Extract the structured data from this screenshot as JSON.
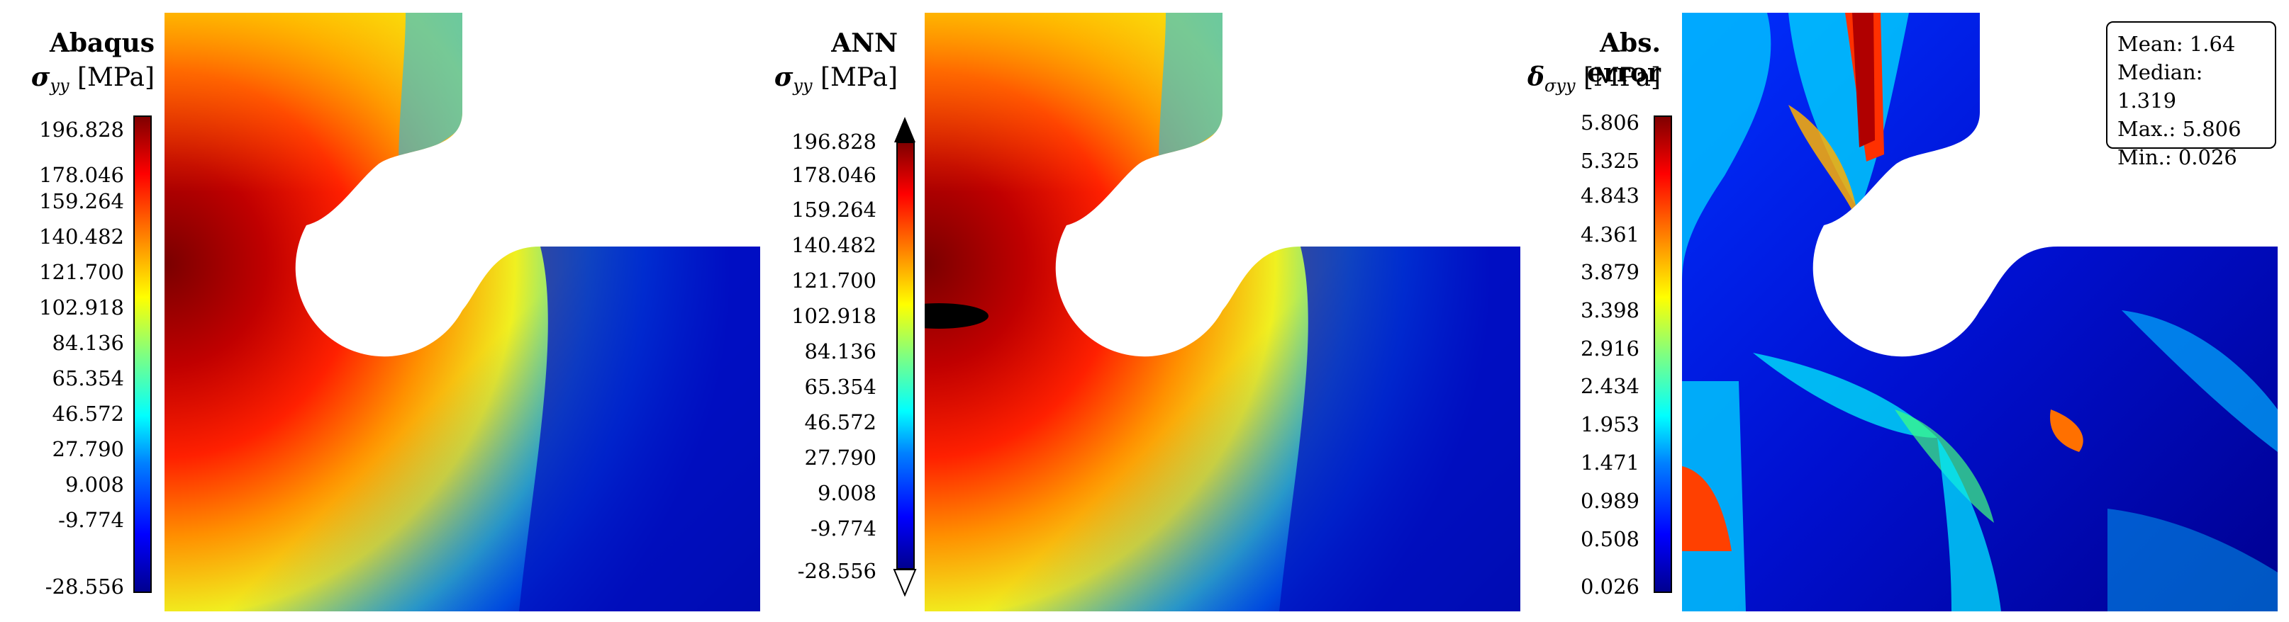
{
  "panels": [
    {
      "title": "Abaqus",
      "symbol": "σ",
      "subscript": "yy",
      "unit": "[MPa]",
      "ticks": [
        "196.828",
        "178.046",
        "159.264",
        "140.482",
        "121.700",
        "102.918",
        "84.136",
        "65.354",
        "46.572",
        "27.790",
        "9.008",
        "-9.774",
        "-28.556"
      ]
    },
    {
      "title": "ANN",
      "symbol": "σ",
      "subscript": "yy",
      "unit": "[MPa]",
      "ticks": [
        "196.828",
        "178.046",
        "159.264",
        "140.482",
        "121.700",
        "102.918",
        "84.136",
        "65.354",
        "46.572",
        "27.790",
        "9.008",
        "-9.774",
        "-28.556"
      ]
    },
    {
      "title": "Abs. error",
      "symbol": "δ",
      "subscript": "σyy",
      "unit": "[MPa]",
      "ticks": [
        "5.806",
        "5.325",
        "4.843",
        "4.361",
        "3.879",
        "3.398",
        "2.916",
        "2.434",
        "1.953",
        "1.471",
        "0.989",
        "0.508",
        "0.026"
      ]
    }
  ],
  "stats": {
    "mean": "Mean: 1.64",
    "median": "Median: 1.319",
    "max": "Max.: 5.806",
    "min": "Min.: 0.026"
  },
  "colormap": [
    "#00008f",
    "#0000ff",
    "#0080ff",
    "#00ffff",
    "#80ff80",
    "#ffff00",
    "#ff8000",
    "#ff0000",
    "#800000"
  ]
}
